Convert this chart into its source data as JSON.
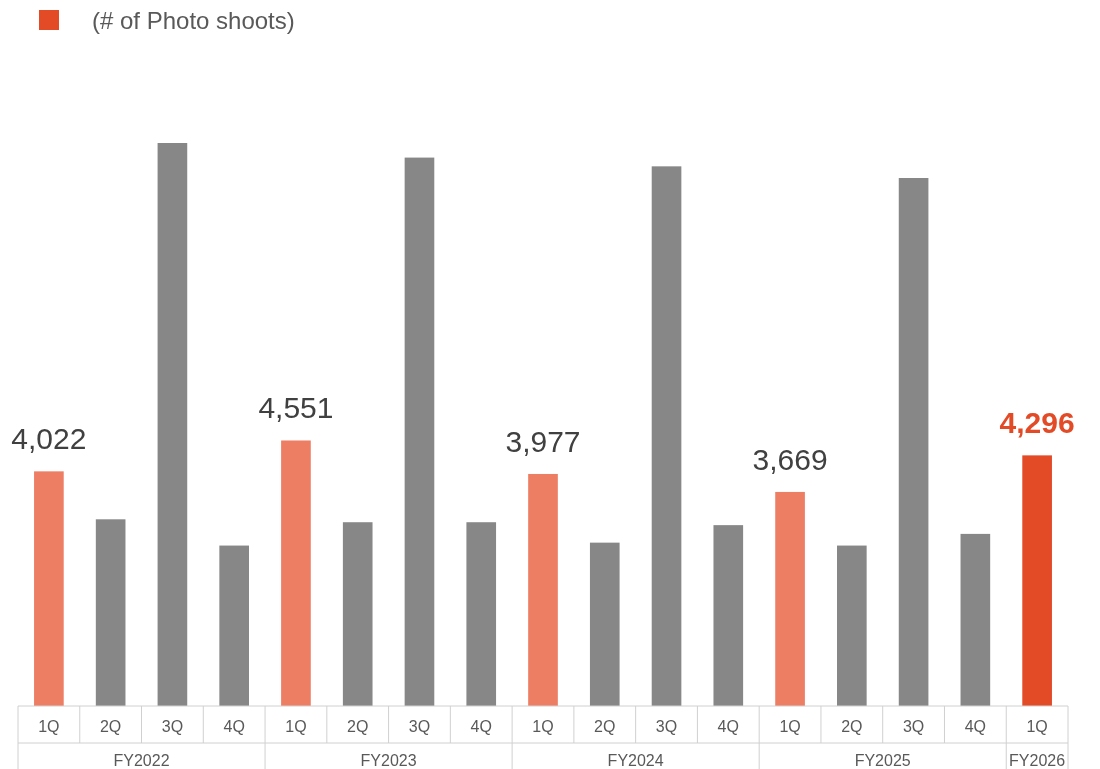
{
  "chart_data": {
    "type": "bar",
    "categories": [
      "1Q",
      "2Q",
      "3Q",
      "4Q",
      "1Q",
      "2Q",
      "3Q",
      "4Q",
      "1Q",
      "2Q",
      "3Q",
      "4Q",
      "1Q",
      "2Q",
      "3Q",
      "4Q",
      "1Q"
    ],
    "series": [
      {
        "name": "(# of Photo shoots)",
        "color": "#e34a26",
        "colors": [
          "#ed7d63",
          "#878787",
          "#878787",
          "#878787",
          "#ed7d63",
          "#878787",
          "#878787",
          "#878787",
          "#ed7d63",
          "#878787",
          "#878787",
          "#878787",
          "#ed7d63",
          "#878787",
          "#878787",
          "#878787",
          "#e34a26"
        ],
        "values": [
          4022,
          3200,
          9650,
          2750,
          4551,
          3150,
          9400,
          3150,
          3977,
          2800,
          9250,
          3100,
          3669,
          2750,
          9050,
          2950,
          4296
        ],
        "value_labels": [
          "4,022",
          null,
          null,
          null,
          "4,551",
          null,
          null,
          null,
          "3,977",
          null,
          null,
          null,
          "3,669",
          null,
          null,
          null,
          "4,296"
        ]
      }
    ],
    "annotations": [
      "FY2022",
      "FY2023",
      "FY2024",
      "FY2025",
      "FY2026"
    ],
    "legend": "top left"
  }
}
